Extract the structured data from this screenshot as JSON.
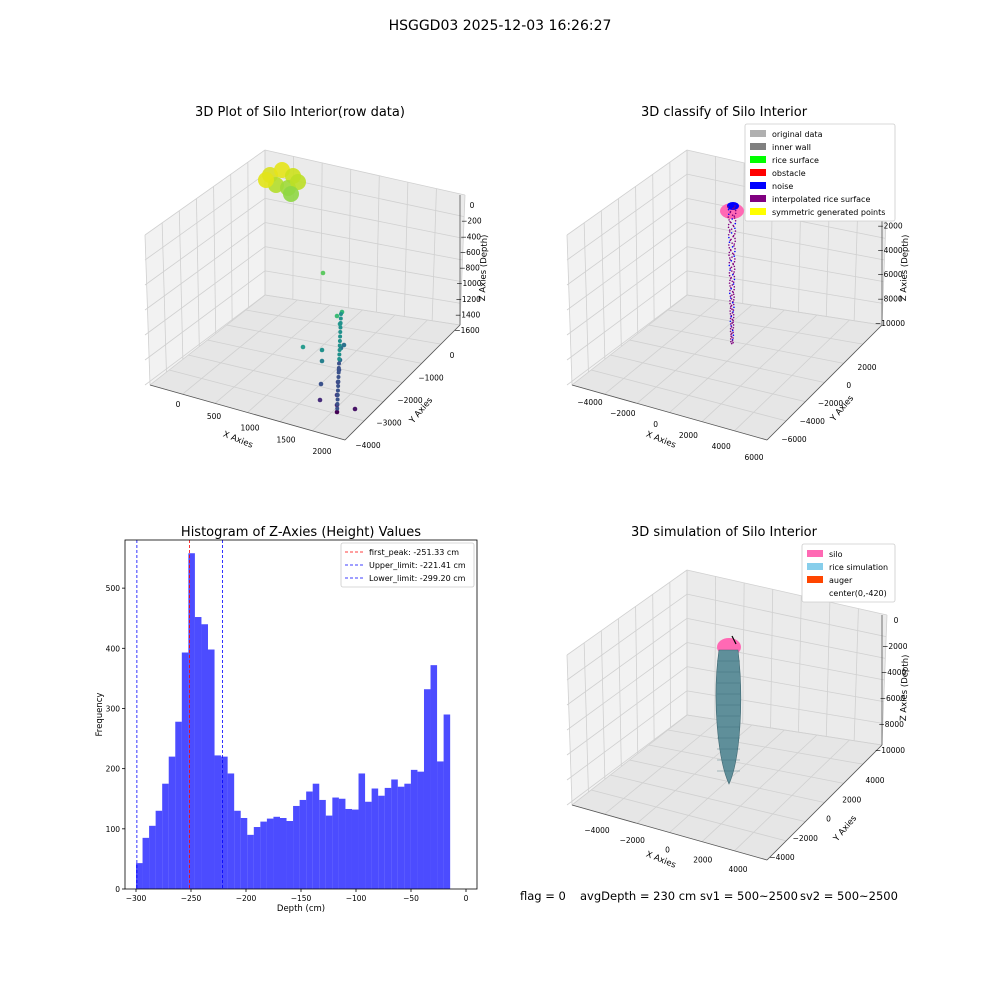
{
  "figure_title": "HSGGD03 2025-12-03 16:26:27",
  "footer": {
    "flag": "flag = 0",
    "avgDepth": "avgDepth = 230 cm",
    "sv1": "sv1 = 500~2500",
    "sv2": "sv2 = 500~2500"
  },
  "colors": {
    "histogram_bar": "#0000ff",
    "first_peak": "#ff0000",
    "limit_lines": "#0000ff",
    "silo": "#ff69b4",
    "rice_simulation": "#87ceeb",
    "auger": "#ff4500"
  },
  "chart_data": [
    {
      "type": "scatter",
      "projection": "3d",
      "title": "3D Plot of Silo Interior(row data)",
      "xlabel": "X Axies",
      "ylabel": "Y Axies",
      "zlabel": "Z Axies (Depth)",
      "x_ticks": [
        "0",
        "500",
        "1000",
        "1500",
        "2000"
      ],
      "y_ticks": [
        "0",
        "−1000",
        "−2000",
        "−3000",
        "−4000"
      ],
      "z_ticks": [
        "0",
        "−200",
        "−400",
        "−600",
        "−800",
        "−1000",
        "−1200",
        "−1400",
        "−1600"
      ],
      "xlim": [
        -200,
        2100
      ],
      "ylim": [
        -4200,
        600
      ],
      "zlim": [
        -1700,
        0
      ],
      "colormap": "viridis",
      "points": [
        {
          "x": 0,
          "y": 0,
          "z": -80,
          "note": "dense yellow-green cluster near surface"
        },
        {
          "x": 1400,
          "y": -1500,
          "z": -950
        },
        {
          "x": 1750,
          "y": -3000,
          "z": -1450
        },
        {
          "x": 1800,
          "y": -3400,
          "z": -1500
        },
        {
          "x": 1900,
          "y": -3800,
          "z": -1560
        },
        {
          "x": 1500,
          "y": -2800,
          "z": -1420
        },
        {
          "x": 1600,
          "y": -3000,
          "z": -1470
        }
      ]
    },
    {
      "type": "scatter",
      "projection": "3d",
      "title": "3D classify of Silo Interior",
      "xlabel": "X Axies",
      "ylabel": "Y Axies",
      "zlabel": "Z Axies (Depth)",
      "x_ticks": [
        "−4000",
        "−2000",
        "0",
        "2000",
        "4000",
        "6000"
      ],
      "y_ticks": [
        "2000",
        "0",
        "−2000",
        "−4000",
        "−6000"
      ],
      "z_ticks": [
        "0",
        "−2000",
        "−4000",
        "−6000",
        "−8000",
        "−10000"
      ],
      "legend": {
        "position": "upper right",
        "entries": [
          {
            "label": "original data",
            "color": "#b0b0b0"
          },
          {
            "label": "inner wall",
            "color": "#808080"
          },
          {
            "label": "rice surface",
            "color": "#00ff00"
          },
          {
            "label": "obstacle",
            "color": "#ff0000"
          },
          {
            "label": "noise",
            "color": "#0000ff"
          },
          {
            "label": "interpolated rice surface",
            "color": "#800080"
          },
          {
            "label": "symmetric generated points",
            "color": "#ffff00"
          }
        ]
      }
    },
    {
      "type": "bar",
      "title": "Histogram of Z-Axies (Height) Values",
      "xlabel": "Depth (cm)",
      "ylabel": "Frequency",
      "xlim": [
        -310,
        10
      ],
      "ylim": [
        0,
        580
      ],
      "x_ticks": [
        -300,
        -250,
        -200,
        -150,
        -100,
        -50,
        0
      ],
      "x_tick_labels": [
        "−300",
        "−250",
        "−200",
        "−150",
        "−100",
        "−50",
        "0"
      ],
      "y_ticks": [
        0,
        100,
        200,
        300,
        400,
        500
      ],
      "bin_start": -300,
      "bin_width": 5.95,
      "values": [
        43,
        85,
        105,
        130,
        175,
        220,
        278,
        393,
        558,
        452,
        440,
        398,
        222,
        220,
        192,
        130,
        118,
        90,
        103,
        112,
        117,
        120,
        118,
        113,
        138,
        148,
        162,
        175,
        148,
        122,
        152,
        150,
        133,
        132,
        192,
        145,
        167,
        155,
        168,
        182,
        170,
        175,
        198,
        195,
        332,
        372,
        212,
        290
      ],
      "reference_lines": [
        {
          "label": "first_peak: -251.33 cm",
          "x": -251.33,
          "color": "#ff0000"
        },
        {
          "label": "Upper_limit: -221.41 cm",
          "x": -221.41,
          "color": "#0000ff"
        },
        {
          "label": "Lower_limit: -299.20 cm",
          "x": -299.2,
          "color": "#0000ff"
        }
      ],
      "legend": {
        "position": "upper right"
      }
    },
    {
      "type": "surface",
      "projection": "3d",
      "title": "3D simulation of Silo Interior",
      "xlabel": "X Axies",
      "ylabel": "Y Axies",
      "zlabel": "Z Axies (Depth)",
      "x_ticks": [
        "−4000",
        "−2000",
        "0",
        "2000",
        "4000"
      ],
      "y_ticks": [
        "4000",
        "2000",
        "0",
        "−2000",
        "−4000"
      ],
      "z_ticks": [
        "0",
        "−2000",
        "−4000",
        "−6000",
        "−8000",
        "−10000"
      ],
      "legend": {
        "position": "upper right",
        "entries": [
          {
            "label": "silo",
            "color": "#ff69b4"
          },
          {
            "label": "rice simulation",
            "color": "#87ceeb"
          },
          {
            "label": "auger",
            "color": "#ff4500"
          },
          {
            "label": "center(0,-420)",
            "color": "none"
          }
        ]
      }
    }
  ]
}
